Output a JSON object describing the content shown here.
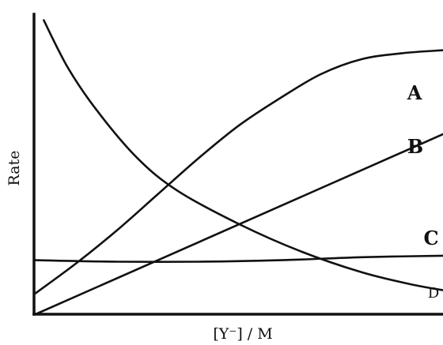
{
  "chart_data": {
    "type": "line",
    "title": "",
    "xlabel": "[Y⁻] / M",
    "ylabel": "Rate",
    "grid": false,
    "legend": "none",
    "xlim": [
      0,
      100
    ],
    "ylim": [
      0,
      100
    ],
    "series": [
      {
        "name": "A",
        "x": [
          0,
          10,
          20,
          30,
          40,
          50,
          60,
          70,
          80,
          90,
          100
        ],
        "y": [
          7,
          17,
          28,
          40,
          52,
          63,
          72,
          80,
          85,
          87,
          88
        ]
      },
      {
        "name": "B",
        "x": [
          0,
          100
        ],
        "y": [
          0,
          60
        ]
      },
      {
        "name": "C",
        "x": [
          0,
          20,
          40,
          60,
          80,
          100
        ],
        "y": [
          18,
          17.5,
          17.5,
          18,
          19,
          19.5
        ]
      },
      {
        "name": "D",
        "x": [
          2,
          8,
          15,
          25,
          35,
          50,
          65,
          80,
          92,
          100
        ],
        "y": [
          98,
          82,
          68,
          52,
          41,
          30,
          21,
          14,
          10,
          8
        ]
      }
    ]
  }
}
